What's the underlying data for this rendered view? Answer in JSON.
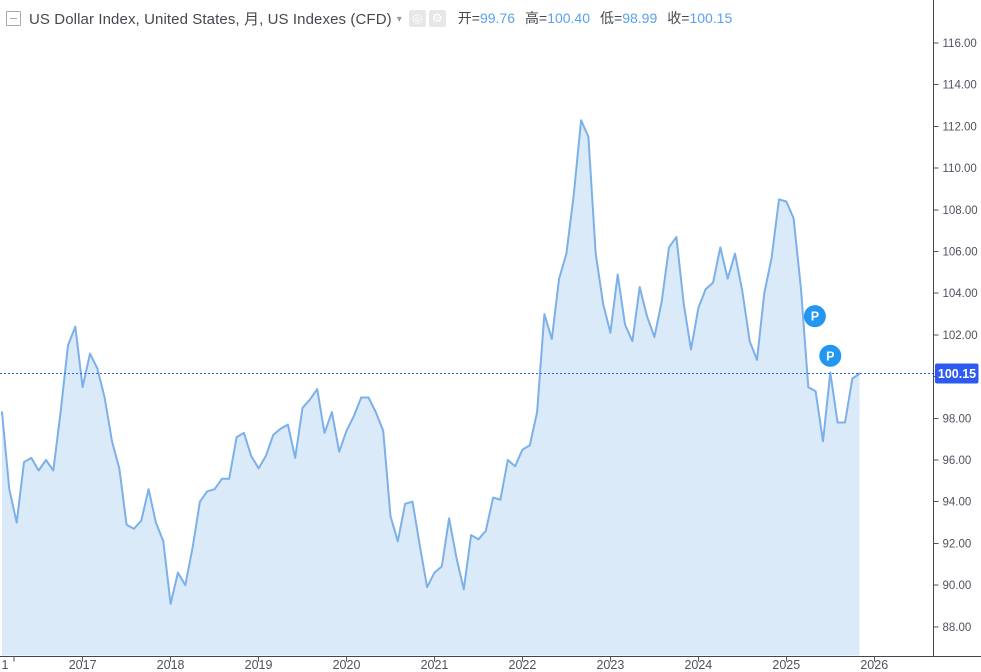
{
  "header": {
    "title": "US Dollar Index, United States, 月, US Indexes (CFD)",
    "ohlc": {
      "open_label": "开=",
      "open": "99.76",
      "high_label": "高=",
      "high": "100.40",
      "low_label": "低=",
      "low": "98.99",
      "close_label": "收=",
      "close": "100.15"
    },
    "icons": {
      "collapse": "legend-collapse",
      "caret": "▾",
      "hide_glyph": "◎",
      "settings_glyph": "⚙"
    }
  },
  "price_scale": {
    "last_price_label": "100.15"
  },
  "colors": {
    "line": "#7cb0e8",
    "fill": "#dbeaf9",
    "value_blue": "#59a1ec",
    "text_dark": "#45494f",
    "axis_text": "#50535e",
    "axis_line": "#434651",
    "price_line": "#2962ff",
    "price_label_bg": "#2e5bef",
    "badge_bg": "#2196f3"
  },
  "chart_data": {
    "type": "area",
    "title": "US Dollar Index, United States, 月, US Indexes (CFD)",
    "ylabel": "",
    "xlabel": "",
    "ylim": [
      88,
      116
    ],
    "y_tick_step": 2,
    "grid": false,
    "start_year": 2016,
    "start_month": 2,
    "frequency": "monthly",
    "values": [
      98.3,
      94.6,
      93.0,
      95.9,
      96.1,
      95.5,
      96.0,
      95.5,
      98.3,
      101.5,
      102.4,
      99.5,
      101.1,
      100.4,
      99.0,
      96.9,
      95.6,
      92.9,
      92.7,
      93.1,
      94.6,
      93.0,
      92.1,
      89.1,
      90.6,
      90.0,
      91.8,
      94.0,
      94.5,
      94.6,
      95.1,
      95.1,
      97.1,
      97.3,
      96.2,
      95.6,
      96.2,
      97.2,
      97.5,
      97.7,
      96.1,
      98.5,
      98.9,
      99.4,
      97.3,
      98.3,
      96.4,
      97.4,
      98.1,
      99.0,
      99.0,
      98.3,
      97.4,
      93.3,
      92.1,
      93.9,
      94.0,
      91.9,
      89.9,
      90.6,
      90.9,
      93.2,
      91.3,
      89.8,
      92.4,
      92.2,
      92.6,
      94.2,
      94.1,
      96.0,
      95.7,
      96.5,
      96.7,
      98.3,
      103.0,
      101.8,
      104.7,
      105.9,
      108.7,
      112.3,
      111.5,
      105.9,
      103.5,
      102.1,
      104.9,
      102.5,
      101.7,
      104.3,
      102.9,
      101.9,
      103.6,
      106.2,
      106.7,
      103.5,
      101.3,
      103.3,
      104.2,
      104.5,
      106.2,
      104.7,
      105.9,
      104.1,
      101.7,
      100.8,
      104.0,
      105.7,
      108.5,
      108.4,
      107.6,
      104.2,
      99.5,
      99.3,
      96.9,
      100.2,
      97.8,
      97.8,
      99.9,
      100.15
    ],
    "x_partial_label": "1",
    "x_year_labels": [
      "2017",
      "2018",
      "2019",
      "2020",
      "2021",
      "2022",
      "2023",
      "2024",
      "2025",
      "2026"
    ],
    "last_price": 100.15,
    "badges": [
      {
        "label": "P",
        "month_index": 110.9,
        "price": 102.9
      },
      {
        "label": "P",
        "month_index": 113.0,
        "price": 101.0
      }
    ]
  }
}
